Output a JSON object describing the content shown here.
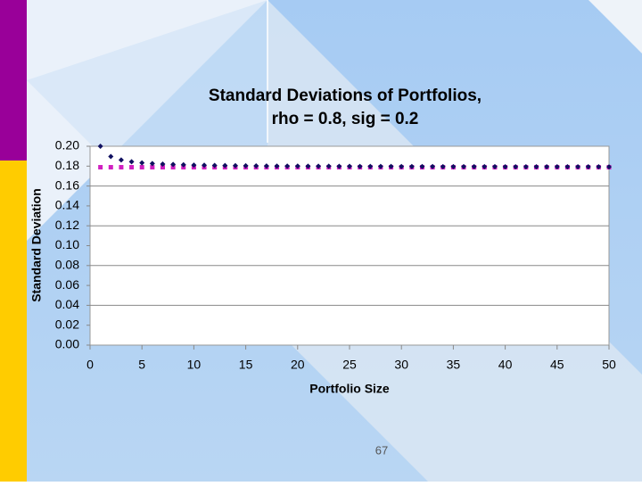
{
  "chart_data": {
    "type": "scatter",
    "title": "Standard Deviations of Portfolios,",
    "subtitle": "rho = 0.8, sig = 0.2",
    "x_label": "Portfolio Size",
    "y_label": "Standard Deviation",
    "x": [
      1,
      2,
      3,
      4,
      5,
      6,
      7,
      8,
      9,
      10,
      11,
      12,
      13,
      14,
      15,
      16,
      17,
      18,
      19,
      20,
      21,
      22,
      23,
      24,
      25,
      26,
      27,
      28,
      29,
      30,
      31,
      32,
      33,
      34,
      35,
      36,
      37,
      38,
      39,
      40,
      41,
      42,
      43,
      44,
      45,
      46,
      47,
      48,
      49,
      50
    ],
    "series": [
      {
        "color": "#d020c0",
        "marker": "square",
        "values": [
          0.1789,
          0.1789,
          0.1789,
          0.1789,
          0.1789,
          0.1789,
          0.1789,
          0.1789,
          0.1789,
          0.1789,
          0.1789,
          0.1789,
          0.1789,
          0.1789,
          0.1789,
          0.1789,
          0.1789,
          0.1789,
          0.1789,
          0.1789,
          0.1789,
          0.1789,
          0.1789,
          0.1789,
          0.1789,
          0.1789,
          0.1789,
          0.1789,
          0.1789,
          0.1789,
          0.1789,
          0.1789,
          0.1789,
          0.1789,
          0.1789,
          0.1789,
          0.1789,
          0.1789,
          0.1789,
          0.1789,
          0.1789,
          0.1789,
          0.1789,
          0.1789,
          0.1789,
          0.1789,
          0.1789,
          0.1789,
          0.1789,
          0.1789
        ]
      },
      {
        "color": "#101060",
        "marker": "diamond",
        "values": [
          0.2,
          0.1897,
          0.1862,
          0.1844,
          0.1833,
          0.1826,
          0.1821,
          0.1817,
          0.1814,
          0.1811,
          0.1809,
          0.1807,
          0.1806,
          0.1805,
          0.1804,
          0.1803,
          0.1802,
          0.1801,
          0.1801,
          0.18,
          0.1799,
          0.1799,
          0.1799,
          0.1798,
          0.1798,
          0.1797,
          0.1797,
          0.1797,
          0.1797,
          0.1796,
          0.1796,
          0.1796,
          0.1796,
          0.1795,
          0.1795,
          0.1795,
          0.1795,
          0.1795,
          0.1795,
          0.1794,
          0.1794,
          0.1794,
          0.1794,
          0.1794,
          0.1794,
          0.1794,
          0.1794,
          0.1794,
          0.1794,
          0.1793
        ]
      }
    ],
    "xlim": [
      0,
      50
    ],
    "xticks": [
      0,
      5,
      10,
      15,
      20,
      25,
      30,
      35,
      40,
      45,
      50
    ],
    "ylim": [
      0,
      0.2
    ],
    "yticks": [
      {
        "value": 0,
        "label": "0.00"
      },
      {
        "value": 0.02,
        "label": "0.02"
      },
      {
        "value": 0.04,
        "label": "0.04"
      },
      {
        "value": 0.06,
        "label": "0.06"
      },
      {
        "value": 0.08,
        "label": "0.08"
      },
      {
        "value": 0.1,
        "label": "0.10"
      },
      {
        "value": 0.12,
        "label": "0.12"
      },
      {
        "value": 0.14,
        "label": "0.14"
      },
      {
        "value": 0.16,
        "label": "0.16"
      },
      {
        "value": 0.18,
        "label": "0.18"
      },
      {
        "value": 0.2,
        "label": "0.20"
      }
    ],
    "ygrid": [
      0.04,
      0.08,
      0.12,
      0.16
    ]
  },
  "page_number": "67"
}
